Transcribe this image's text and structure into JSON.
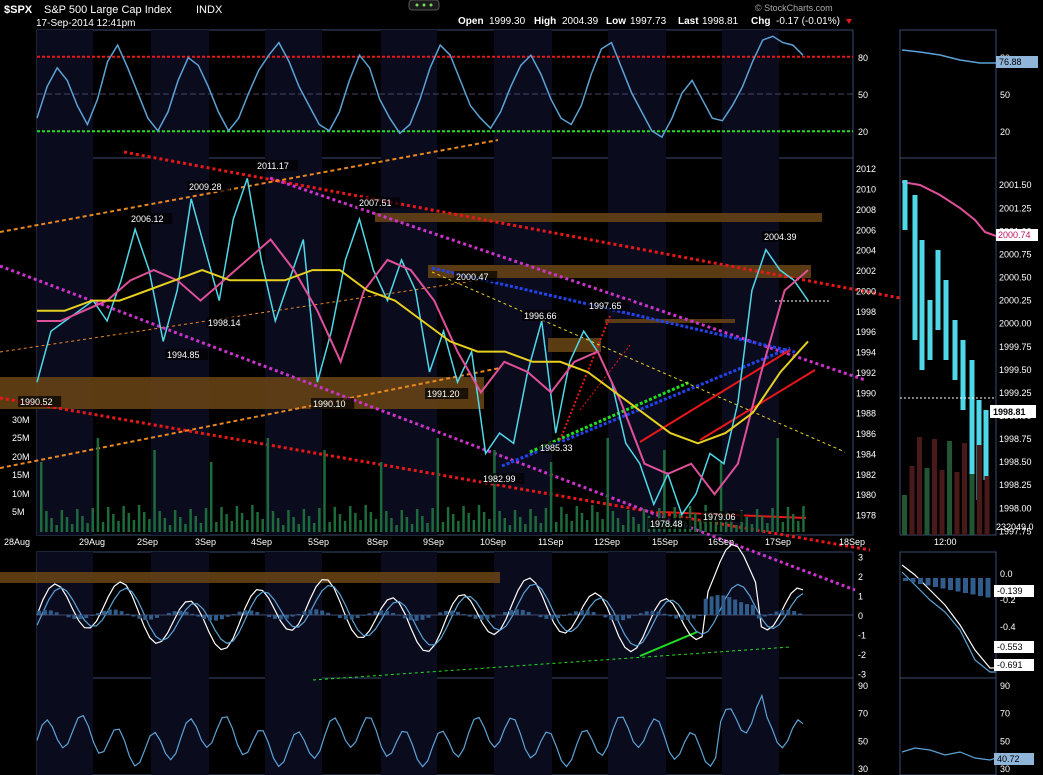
{
  "header": {
    "symbol": "$SPX",
    "name": "S&P 500 Large Cap Index",
    "exchange": "INDX",
    "datetime": "17-Sep-2014 12:41pm",
    "open_label": "Open",
    "open": "1999.30",
    "high_label": "High",
    "high": "2004.39",
    "low_label": "Low",
    "low": "1997.73",
    "last_label": "Last",
    "last": "1998.81",
    "chg_label": "Chg",
    "chg": "-0.17 (-0.01%)",
    "watermark": "© StockCharts.com",
    "settings_icon": "dots-icon"
  },
  "colors": {
    "price": "#4fd8e8",
    "ma_fast": "#e0509a",
    "ma_slow": "#e6d020",
    "indicator": "#5ba3d6",
    "line_red": "#e81818",
    "line_magenta": "#cc33cc",
    "line_blue": "#2244ee",
    "line_green": "#22dd22",
    "line_orange": "#e88820",
    "zone": "#6b4515",
    "volume": "#1d6a3a",
    "background": "#000000",
    "panel_shade": "#0b0b1e"
  },
  "chart_data": [
    {
      "panel": "rsi",
      "type": "line",
      "ylim": [
        0,
        100
      ],
      "ticks": [
        "80",
        "50",
        "20"
      ],
      "levels": {
        "overbought": 80,
        "oversold": 20
      },
      "values": [
        30,
        55,
        70,
        60,
        40,
        25,
        45,
        75,
        88,
        70,
        50,
        30,
        20,
        35,
        60,
        78,
        72,
        55,
        35,
        20,
        30,
        50,
        68,
        80,
        90,
        75,
        55,
        40,
        25,
        20,
        35,
        60,
        80,
        70,
        45,
        30,
        18,
        25,
        45,
        70,
        88,
        80,
        60,
        40,
        30,
        22,
        35,
        55,
        72,
        80,
        65,
        45,
        30,
        25,
        40,
        65,
        85,
        90,
        70,
        50,
        35,
        20,
        15,
        30,
        50,
        60,
        45,
        30,
        28,
        40,
        55,
        75,
        92,
        95,
        90,
        88,
        80
      ],
      "sidebar_value": "76.88"
    },
    {
      "panel": "price",
      "type": "line",
      "ylim": [
        1976,
        2013
      ],
      "x_labels": [
        "28Aug",
        "29Aug",
        "2Sep",
        "3Sep",
        "4Sep",
        "5Sep",
        "8Sep",
        "9Sep",
        "10Sep",
        "11Sep",
        "12Sep",
        "15Sep",
        "16Sep",
        "17Sep",
        "18Sep"
      ],
      "y_ticks": [
        "2012",
        "2010",
        "2008",
        "2006",
        "2004",
        "2002",
        "2000",
        "1998",
        "1996",
        "1994",
        "1992",
        "1990",
        "1988",
        "1986",
        "1984",
        "1982",
        "1980",
        "1978"
      ],
      "volume_ticks": [
        "30M",
        "25M",
        "20M",
        "15M",
        "10M",
        "5M"
      ],
      "price_series": [
        1991,
        1996,
        1997,
        1998,
        1999,
        1997,
        2001,
        2006,
        2002,
        1995,
        2000,
        2009,
        2004,
        1999,
        2007,
        2011,
        2003,
        1997,
        2001,
        2005,
        1991,
        1996,
        2003,
        2007,
        2002,
        1999,
        2003,
        2000,
        1992,
        1996,
        1991,
        1994,
        1984,
        1986,
        1985,
        1992,
        1997,
        1986,
        1993,
        1996,
        1994,
        1991,
        1985,
        1983,
        1979,
        1982,
        1978,
        1980,
        1984,
        1983,
        1989,
        2000,
        2004,
        2002,
        2001,
        1999
      ],
      "ma_fast_series": [
        1997,
        1997,
        1998,
        1999,
        2001,
        2002,
        2001,
        1999,
        2001,
        2003,
        2005,
        2002,
        1998,
        1993,
        2000,
        2003,
        2002,
        1999,
        1994,
        1990,
        1993,
        1992,
        1990,
        1993,
        1994,
        1989,
        1983,
        1982,
        1983,
        1980,
        1983,
        1992,
        2000,
        2002
      ],
      "ma_slow_series": [
        1998,
        1998,
        1999,
        1999,
        2000,
        2001,
        2002,
        2001,
        2001,
        2001,
        2002,
        2002,
        2000,
        1999,
        1997,
        1995,
        1994,
        1994,
        1993,
        1993,
        1992,
        1990,
        1988,
        1986,
        1985,
        1986,
        1988,
        1992,
        1995
      ],
      "annotations": [
        "2011.17",
        "2009.28",
        "2006.12",
        "2007.51",
        "2000.47",
        "1997.65",
        "1996.66",
        "2004.39",
        "1998.14",
        "1994.85",
        "1990.52",
        "1990.10",
        "1991.20",
        "1985.33",
        "1982.99",
        "1978.48",
        "1979.06"
      ]
    },
    {
      "panel": "intraday",
      "type": "line",
      "ylim": [
        1997.7,
        2001.6
      ],
      "y_ticks": [
        "2001.50",
        "2001.25",
        "2001.00",
        "2000.75",
        "2000.50",
        "2000.25",
        "2000.00",
        "1999.75",
        "1999.50",
        "1999.25",
        "1999.00",
        "1998.75",
        "1998.50",
        "1998.25",
        "1998.00",
        "1997.75"
      ],
      "x_labels": [
        "12:00"
      ],
      "ma_label": "2000.74",
      "last_label": "1998.81",
      "volume_label": "232049.0"
    },
    {
      "panel": "oscillator",
      "type": "line",
      "ylim": [
        -3,
        3
      ],
      "ticks": [
        "3",
        "2",
        "1",
        "0",
        "-1",
        "-2",
        "-3"
      ],
      "sidebar_ticks": [
        "0.0",
        "-0.2",
        "-0.4"
      ],
      "sidebar_values": [
        "-0.139",
        "-0.553",
        "-0.691"
      ]
    },
    {
      "panel": "bottom",
      "type": "line",
      "ylim": [
        25,
        95
      ],
      "ticks": [
        "90",
        "70",
        "50",
        "30"
      ],
      "sidebar_ticks": [
        "90",
        "70",
        "50",
        "30"
      ],
      "sidebar_value": "40.72"
    }
  ]
}
